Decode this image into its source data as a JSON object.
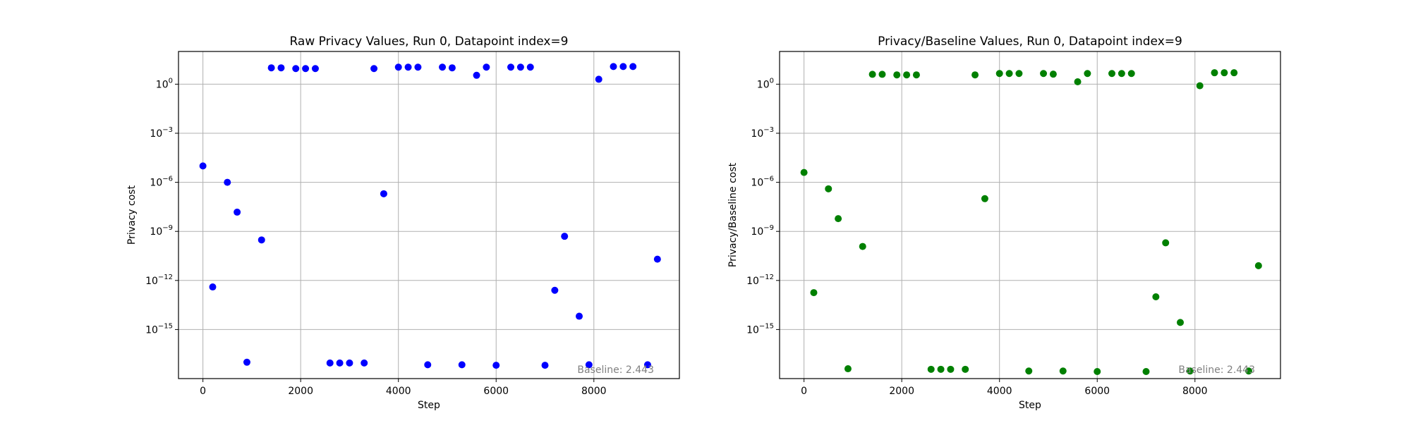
{
  "chart_data": [
    {
      "type": "scatter",
      "title": "Raw Privacy Values, Run 0, Datapoint index=9",
      "xlabel": "Step",
      "ylabel": "Privacy cost",
      "yscale": "log",
      "xlim": [
        -500,
        9750
      ],
      "ylim": [
        1e-18,
        100.0
      ],
      "xticks": [
        0,
        2000,
        4000,
        6000,
        8000
      ],
      "yticks": [
        1e-15,
        1e-12,
        1e-09,
        1e-06,
        0.001,
        1
      ],
      "ytick_labels": [
        [
          "10",
          "−15"
        ],
        [
          "10",
          "−12"
        ],
        [
          "10",
          "−9"
        ],
        [
          "10",
          "−6"
        ],
        [
          "10",
          "−3"
        ],
        [
          "10",
          "0"
        ]
      ],
      "grid": true,
      "color": "#0000ff",
      "annotation": "Baseline: 2.443",
      "points": [
        [
          0,
          1e-05
        ],
        [
          200,
          4e-13
        ],
        [
          500,
          1e-06
        ],
        [
          700,
          1.5e-08
        ],
        [
          900,
          1e-17
        ],
        [
          1200,
          3e-10
        ],
        [
          1400,
          10
        ],
        [
          1600,
          10
        ],
        [
          1900,
          9
        ],
        [
          2100,
          9
        ],
        [
          2300,
          9
        ],
        [
          2600,
          9e-18
        ],
        [
          2800,
          9e-18
        ],
        [
          3000,
          9e-18
        ],
        [
          3300,
          9e-18
        ],
        [
          3500,
          9
        ],
        [
          3700,
          2e-07
        ],
        [
          4000,
          11
        ],
        [
          4200,
          11
        ],
        [
          4400,
          11
        ],
        [
          4600,
          7e-18
        ],
        [
          4900,
          11
        ],
        [
          5100,
          10
        ],
        [
          5300,
          7e-18
        ],
        [
          5600,
          3.5
        ],
        [
          5800,
          11
        ],
        [
          6000,
          6.5e-18
        ],
        [
          6300,
          11
        ],
        [
          6500,
          11
        ],
        [
          6700,
          11
        ],
        [
          7000,
          6.5e-18
        ],
        [
          7200,
          2.5e-13
        ],
        [
          7400,
          5e-10
        ],
        [
          7700,
          6.5e-15
        ],
        [
          7900,
          7e-18
        ],
        [
          8100,
          2
        ],
        [
          8400,
          12
        ],
        [
          8600,
          12
        ],
        [
          8800,
          12
        ],
        [
          9100,
          7e-18
        ],
        [
          9300,
          2e-11
        ]
      ]
    },
    {
      "type": "scatter",
      "title": "Privacy/Baseline Values, Run 0, Datapoint index=9",
      "xlabel": "Step",
      "ylabel": "Privacy/Baseline cost",
      "yscale": "log",
      "xlim": [
        -500,
        9750
      ],
      "ylim": [
        1e-18,
        100.0
      ],
      "xticks": [
        0,
        2000,
        4000,
        6000,
        8000
      ],
      "yticks": [
        1e-15,
        1e-12,
        1e-09,
        1e-06,
        0.001,
        1
      ],
      "ytick_labels": [
        [
          "10",
          "−15"
        ],
        [
          "10",
          "−12"
        ],
        [
          "10",
          "−9"
        ],
        [
          "10",
          "−6"
        ],
        [
          "10",
          "−3"
        ],
        [
          "10",
          "0"
        ]
      ],
      "grid": true,
      "color": "#008000",
      "annotation": "Baseline: 2.443",
      "points": [
        [
          0,
          4e-06
        ],
        [
          200,
          1.8e-13
        ],
        [
          500,
          4e-07
        ],
        [
          700,
          6e-09
        ],
        [
          900,
          4e-18
        ],
        [
          1200,
          1.2e-10
        ],
        [
          1400,
          4
        ],
        [
          1600,
          4
        ],
        [
          1900,
          3.7
        ],
        [
          2100,
          3.7
        ],
        [
          2300,
          3.7
        ],
        [
          2600,
          3.7e-18
        ],
        [
          2800,
          3.7e-18
        ],
        [
          3000,
          3.7e-18
        ],
        [
          3300,
          3.7e-18
        ],
        [
          3500,
          3.7
        ],
        [
          3700,
          1e-07
        ],
        [
          4000,
          4.5
        ],
        [
          4200,
          4.5
        ],
        [
          4400,
          4.5
        ],
        [
          4600,
          2.9e-18
        ],
        [
          4900,
          4.5
        ],
        [
          5100,
          4.1
        ],
        [
          5300,
          2.9e-18
        ],
        [
          5600,
          1.4
        ],
        [
          5800,
          4.5
        ],
        [
          6000,
          2.7e-18
        ],
        [
          6300,
          4.5
        ],
        [
          6500,
          4.5
        ],
        [
          6700,
          4.5
        ],
        [
          7000,
          2.7e-18
        ],
        [
          7200,
          1e-13
        ],
        [
          7400,
          2e-10
        ],
        [
          7700,
          2.7e-15
        ],
        [
          7900,
          2.9e-18
        ],
        [
          8100,
          0.8
        ],
        [
          8400,
          5
        ],
        [
          8600,
          5
        ],
        [
          8800,
          5
        ],
        [
          9100,
          2.9e-18
        ],
        [
          9300,
          8e-12
        ]
      ]
    }
  ]
}
